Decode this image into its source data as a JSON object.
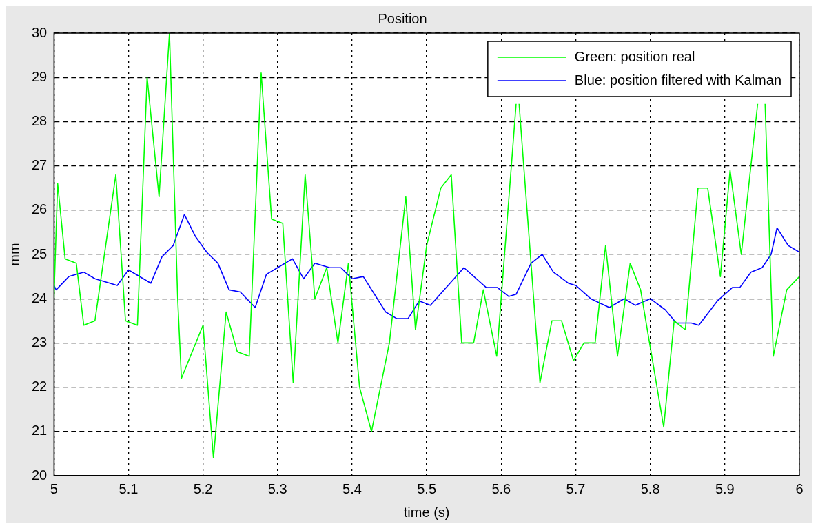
{
  "chart_data": {
    "type": "line",
    "title": "Position",
    "xlabel": "time (s)",
    "ylabel": "mm",
    "xlim": [
      5,
      6
    ],
    "xticks": [
      5,
      5.1,
      5.2,
      5.3,
      5.4,
      5.5,
      5.6,
      5.7,
      5.8,
      5.9,
      6
    ],
    "ylim": [
      20,
      30
    ],
    "yticks": [
      20,
      21,
      22,
      23,
      24,
      25,
      26,
      27,
      28,
      29,
      30
    ],
    "grid": true,
    "legend": "top right",
    "marker": "none",
    "line_style": "solid",
    "series": [
      {
        "name": "Green: position real",
        "color": "#00ff00",
        "x": [
          5.0,
          5.005,
          5.015,
          5.03,
          5.04,
          5.055,
          5.083,
          5.096,
          5.112,
          5.125,
          5.141,
          5.155,
          5.166,
          5.171,
          5.2,
          5.214,
          5.231,
          5.246,
          5.262,
          5.278,
          5.292,
          5.307,
          5.321,
          5.337,
          5.35,
          5.366,
          5.381,
          5.395,
          5.41,
          5.426,
          5.45,
          5.472,
          5.485,
          5.5,
          5.519,
          5.533,
          5.547,
          5.563,
          5.576,
          5.594,
          5.62,
          5.622,
          5.624,
          5.652,
          5.668,
          5.681,
          5.697,
          5.711,
          5.726,
          5.74,
          5.756,
          5.773,
          5.787,
          5.818,
          5.832,
          5.847,
          5.864,
          5.877,
          5.894,
          5.907,
          5.922,
          5.944,
          5.947,
          5.953,
          5.954,
          5.965,
          5.983,
          6.0
        ],
        "values": [
          24.0,
          26.6,
          24.9,
          24.8,
          23.4,
          23.5,
          26.8,
          23.5,
          23.4,
          29.0,
          26.3,
          30.0,
          24.0,
          22.2,
          23.4,
          20.4,
          23.7,
          22.8,
          22.7,
          29.1,
          25.8,
          25.7,
          22.1,
          26.8,
          24.0,
          24.7,
          23.0,
          24.8,
          22.0,
          21.0,
          23.0,
          26.3,
          23.3,
          25.2,
          26.5,
          26.8,
          23.0,
          23.0,
          24.2,
          22.7,
          28.4,
          null,
          28.4,
          22.1,
          23.5,
          23.5,
          22.6,
          23.0,
          23.0,
          25.2,
          22.7,
          24.8,
          24.2,
          21.1,
          23.5,
          23.3,
          26.5,
          26.5,
          24.5,
          26.9,
          25.0,
          28.4,
          null,
          null,
          28.4,
          22.7,
          24.2,
          24.5
        ]
      },
      {
        "name": "Blue: position filtered with Kalman",
        "color": "#0000ff",
        "x": [
          5.0,
          5.003,
          5.02,
          5.04,
          5.055,
          5.085,
          5.1,
          5.13,
          5.145,
          5.16,
          5.175,
          5.19,
          5.205,
          5.22,
          5.235,
          5.25,
          5.27,
          5.285,
          5.3,
          5.32,
          5.335,
          5.35,
          5.37,
          5.385,
          5.4,
          5.415,
          5.445,
          5.46,
          5.475,
          5.49,
          5.505,
          5.55,
          5.58,
          5.595,
          5.61,
          5.62,
          5.64,
          5.655,
          5.67,
          5.69,
          5.7,
          5.72,
          5.745,
          5.765,
          5.78,
          5.8,
          5.82,
          5.835,
          5.855,
          5.865,
          5.89,
          5.91,
          5.92,
          5.935,
          5.95,
          5.962,
          5.97,
          5.985,
          6.0
        ],
        "values": [
          24.3,
          24.2,
          24.5,
          24.6,
          24.45,
          24.3,
          24.65,
          24.35,
          24.95,
          25.2,
          25.9,
          25.4,
          25.05,
          24.8,
          24.2,
          24.15,
          23.8,
          24.55,
          24.7,
          24.9,
          24.45,
          24.8,
          24.7,
          24.7,
          24.45,
          24.5,
          23.7,
          23.55,
          23.55,
          23.95,
          23.85,
          24.7,
          24.25,
          24.25,
          24.05,
          24.1,
          24.8,
          25.0,
          24.6,
          24.35,
          24.3,
          24.0,
          23.8,
          24.0,
          23.85,
          24.0,
          23.75,
          23.45,
          23.45,
          23.4,
          23.95,
          24.25,
          24.25,
          24.6,
          24.7,
          25.0,
          25.6,
          25.2,
          25.05
        ]
      }
    ]
  }
}
